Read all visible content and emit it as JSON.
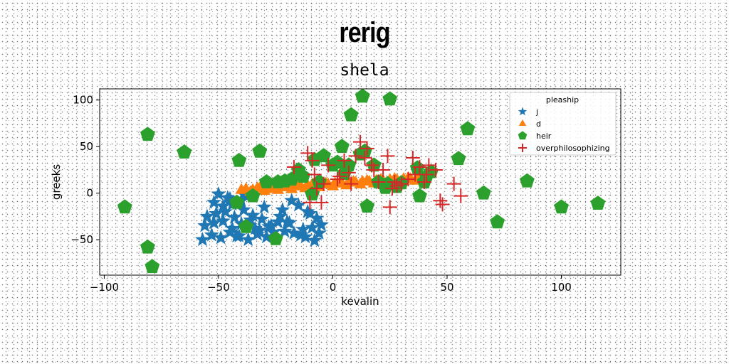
{
  "chart_data": {
    "type": "scatter",
    "title": "rerig",
    "subtitle": "shela",
    "xlabel": "kevalin",
    "ylabel": "greeks",
    "xlim": [
      -102,
      126
    ],
    "ylim": [
      -88,
      112
    ],
    "xticks": [
      -100,
      -50,
      0,
      50,
      100
    ],
    "xtick_labels": [
      "−100",
      "−50",
      "0",
      "50",
      "100"
    ],
    "yticks": [
      -50,
      0,
      50,
      100
    ],
    "ytick_labels": [
      "−50",
      "0",
      "50",
      "100"
    ],
    "grid": false,
    "legend": {
      "title": "pleaship",
      "placement": "top-right"
    },
    "series": [
      {
        "name": "j",
        "marker": "star",
        "color": "#1f77b4",
        "x": [
          -50,
          -46,
          -52,
          -48,
          -44,
          -40,
          -55,
          -51,
          -47,
          -43,
          -39,
          -35,
          -31,
          -56,
          -52,
          -48,
          -44,
          -40,
          -36,
          -32,
          -28,
          -24,
          -53,
          -49,
          -45,
          -41,
          -37,
          -33,
          -29,
          -25,
          -21,
          -17,
          -13,
          -9,
          -5,
          -57,
          -45,
          -38,
          -30,
          -22,
          -15,
          -10,
          -7,
          -19,
          -26,
          -34,
          -42,
          -12,
          -6,
          -18,
          -23,
          -8,
          -11,
          -14,
          -20,
          -27
        ],
        "y": [
          -1,
          -5,
          -10,
          -14,
          -12,
          -8,
          -25,
          -22,
          -20,
          -26,
          -18,
          -24,
          -28,
          -35,
          -32,
          -30,
          -38,
          -33,
          -29,
          -40,
          -36,
          -31,
          -45,
          -48,
          -42,
          -46,
          -50,
          -44,
          -47,
          -49,
          -41,
          -43,
          -39,
          -37,
          -34,
          -50,
          -6,
          -3,
          -15,
          -18,
          -13,
          -22,
          -27,
          -32,
          -42,
          -38,
          -46,
          -47,
          -43,
          -8,
          -25,
          -51,
          -20,
          -45,
          -31,
          -35
        ]
      },
      {
        "name": "d",
        "marker": "triangle",
        "color": "#ff7f0e",
        "x": [
          -40,
          -38,
          -35,
          -32,
          -29,
          -26,
          -23,
          -20,
          -17,
          -14,
          -11,
          -8,
          -5,
          -2,
          1,
          4,
          7,
          10,
          13,
          16,
          19,
          22,
          25,
          28,
          31,
          34,
          37,
          40,
          -36,
          -30,
          -24,
          -18,
          -12,
          -6,
          0,
          6,
          12,
          18,
          24,
          30,
          36,
          -33,
          -27,
          -21,
          -15,
          -9,
          -3,
          3,
          9,
          15,
          21,
          27,
          33,
          39
        ],
        "y": [
          3,
          4,
          3,
          5,
          4,
          5,
          6,
          6,
          7,
          7,
          8,
          8,
          9,
          9,
          10,
          10,
          11,
          11,
          12,
          12,
          13,
          13,
          14,
          14,
          15,
          15,
          16,
          16,
          1,
          2,
          3,
          4,
          5,
          6,
          7,
          8,
          9,
          10,
          11,
          12,
          13,
          5,
          6,
          7,
          8,
          9,
          10,
          11,
          12,
          13,
          14,
          15,
          16,
          17
        ]
      },
      {
        "name": "heir",
        "marker": "pentagon",
        "color": "#2ca02c",
        "x": [
          -81,
          -65,
          -91,
          -81,
          -79,
          -41,
          -32,
          -29,
          -21,
          -18,
          -13,
          -8,
          -6,
          -4,
          0,
          2,
          4,
          5,
          7,
          8,
          12,
          13,
          14,
          15,
          18,
          20,
          23,
          24,
          25,
          28,
          30,
          37,
          38,
          40,
          41,
          43,
          55,
          59,
          66,
          72,
          85,
          100,
          116,
          -42,
          -38,
          -35,
          -24,
          -9,
          -15,
          -25
        ],
        "y": [
          63,
          44,
          -15,
          -58,
          -79,
          35,
          45,
          12,
          13,
          15,
          18,
          36,
          12,
          40,
          30,
          33,
          50,
          21,
          30,
          84,
          42,
          104,
          45,
          -14,
          30,
          12,
          6,
          10,
          101,
          7,
          11,
          27,
          -3,
          12,
          18,
          23,
          37,
          69,
          0,
          -31,
          13,
          -15,
          -11,
          -10,
          -36,
          -3,
          12,
          -1,
          25,
          -49
        ]
      },
      {
        "name": "overphilosophizing",
        "marker": "plus",
        "color": "#d62728",
        "x": [
          -17,
          -11,
          -9,
          -8,
          -7,
          -5,
          -4,
          2,
          5,
          7,
          10,
          12,
          15,
          17,
          20,
          22,
          24,
          25,
          27,
          28,
          30,
          33,
          35,
          38,
          40,
          41,
          42,
          45,
          47,
          48,
          53,
          56,
          -2,
          -10,
          18,
          26,
          36,
          14,
          8,
          3
        ],
        "y": [
          28,
          43,
          35,
          20,
          5,
          -10,
          10,
          15,
          35,
          22,
          40,
          55,
          48,
          30,
          12,
          25,
          40,
          -15,
          12,
          8,
          10,
          15,
          38,
          28,
          12,
          20,
          30,
          25,
          -8,
          -12,
          10,
          -3,
          30,
          -10,
          25,
          5,
          20,
          38,
          10,
          18
        ]
      }
    ]
  }
}
